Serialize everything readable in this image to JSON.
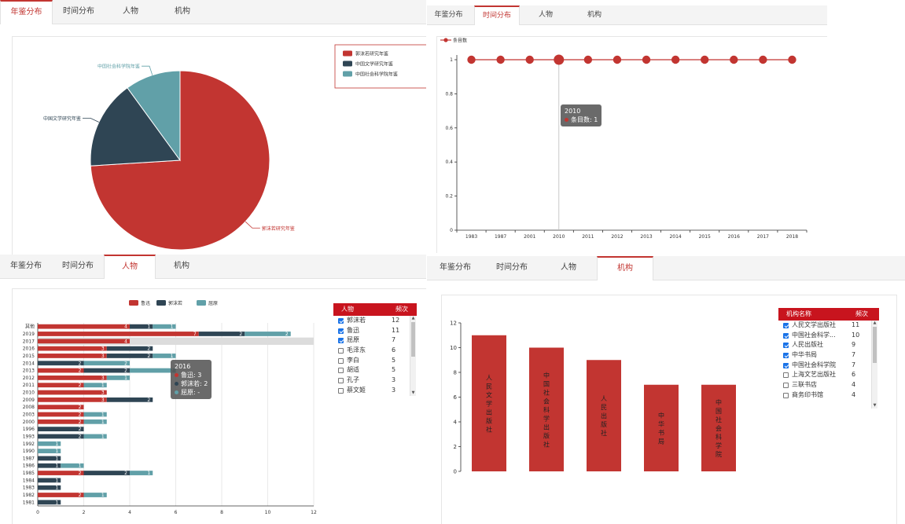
{
  "tabs": [
    "年鉴分布",
    "时间分布",
    "人物",
    "机构"
  ],
  "colors": {
    "red": "#c23531",
    "navy": "#2f4554",
    "teal": "#61a0a8",
    "header": "#c8141e"
  },
  "panel1": {
    "active_tab": 0,
    "chart_data": {
      "type": "pie",
      "slices": [
        {
          "name": "郭沫若研究年鉴",
          "value": 74,
          "color": "#c23531"
        },
        {
          "name": "中国文学研究年鉴",
          "value": 16,
          "color": "#2f4554"
        },
        {
          "name": "中国社会科学院年鉴",
          "value": 10,
          "color": "#61a0a8"
        }
      ],
      "legend": [
        "郭沫若研究年鉴",
        "中国文学研究年鉴",
        "中国社会科学院年鉴"
      ],
      "legend_position": "top-right"
    }
  },
  "panel2": {
    "active_tab": 1,
    "chart_data": {
      "type": "line",
      "legend": "条目数",
      "x": [
        "1983",
        "1987",
        "2001",
        "2010",
        "2011",
        "2012",
        "2013",
        "2014",
        "2015",
        "2016",
        "2017",
        "2018"
      ],
      "series": [
        {
          "name": "条目数",
          "values": [
            1,
            1,
            1,
            1,
            1,
            1,
            1,
            1,
            1,
            1,
            1,
            1
          ]
        }
      ],
      "y_ticks": [
        "0",
        "0.2",
        "0.4",
        "0.6",
        "0.8",
        "1"
      ],
      "ylim": [
        0,
        1
      ],
      "highlight_index": 3
    },
    "tooltip": {
      "title": "2010",
      "line": "条目数: 1"
    }
  },
  "panel3": {
    "active_tab": 2,
    "chart_data": {
      "type": "bar",
      "orientation": "horizontal",
      "stacked": true,
      "categories": [
        "其他",
        "2019",
        "2017",
        "2016",
        "2015",
        "2014",
        "2013",
        "2012",
        "2011",
        "2010",
        "2009",
        "2008",
        "2003",
        "2000",
        "1996",
        "1993",
        "1992",
        "1990",
        "1987",
        "1986",
        "1985",
        "1984",
        "1983",
        "1982",
        "1981"
      ],
      "series": [
        {
          "name": "鲁迅",
          "color": "#c23531",
          "values": [
            4,
            7,
            4,
            3,
            3,
            0,
            2,
            3,
            2,
            3,
            3,
            2,
            2,
            2,
            0,
            0,
            0,
            0,
            0,
            0,
            2,
            0,
            0,
            2,
            0
          ]
        },
        {
          "name": "郭沫若",
          "color": "#2f4554",
          "values": [
            1,
            2,
            0,
            2,
            2,
            2,
            2,
            0,
            0,
            0,
            2,
            0,
            0,
            0,
            2,
            2,
            0,
            0,
            1,
            1,
            2,
            1,
            1,
            0,
            1
          ]
        },
        {
          "name": "屈原",
          "color": "#61a0a8",
          "values": [
            1,
            2,
            0,
            0,
            1,
            2,
            2,
            1,
            1,
            0,
            0,
            0,
            1,
            1,
            0,
            1,
            1,
            1,
            0,
            1,
            1,
            0,
            0,
            1,
            0
          ]
        }
      ],
      "xlim": [
        0,
        12
      ],
      "x_ticks": [
        "0",
        "2",
        "4",
        "6",
        "8",
        "10",
        "12"
      ],
      "highlight_category": "2017"
    },
    "tooltip": {
      "title": "2016",
      "lines": [
        "鲁迅: 3",
        "郭沫若: 2",
        "屈原: -"
      ]
    },
    "table": {
      "headers": [
        "人物",
        "频次"
      ],
      "rows": [
        {
          "name": "郭沫若",
          "count": "12",
          "checked": true
        },
        {
          "name": "鲁迅",
          "count": "11",
          "checked": true
        },
        {
          "name": "屈原",
          "count": "7",
          "checked": true
        },
        {
          "name": "毛泽东",
          "count": "6",
          "checked": false
        },
        {
          "name": "李白",
          "count": "5",
          "checked": false
        },
        {
          "name": "胡适",
          "count": "5",
          "checked": false
        },
        {
          "name": "孔子",
          "count": "3",
          "checked": false
        },
        {
          "name": "蔡文姬",
          "count": "3",
          "checked": false
        }
      ]
    }
  },
  "panel4": {
    "active_tab": 3,
    "chart_data": {
      "type": "bar",
      "categories": [
        "人民文学出版社",
        "中国社会科学出版社",
        "人民出版社",
        "中华书局",
        "中国社会科学院"
      ],
      "values": [
        11,
        10,
        9,
        7,
        7
      ],
      "ylim": [
        0,
        12
      ],
      "y_ticks": [
        "0",
        "2",
        "4",
        "6",
        "8",
        "10",
        "12"
      ]
    },
    "table": {
      "headers": [
        "机构名称",
        "频次"
      ],
      "rows": [
        {
          "name": "人民文学出版社",
          "count": "11",
          "checked": true
        },
        {
          "name": "中国社会科学...",
          "count": "10",
          "checked": true
        },
        {
          "name": "人民出版社",
          "count": "9",
          "checked": true
        },
        {
          "name": "中华书局",
          "count": "7",
          "checked": true
        },
        {
          "name": "中国社会科学院",
          "count": "7",
          "checked": true
        },
        {
          "name": "上海文艺出版社",
          "count": "6",
          "checked": false
        },
        {
          "name": "三联书店",
          "count": "4",
          "checked": false
        },
        {
          "name": "商务印书馆",
          "count": "4",
          "checked": false
        }
      ]
    }
  }
}
